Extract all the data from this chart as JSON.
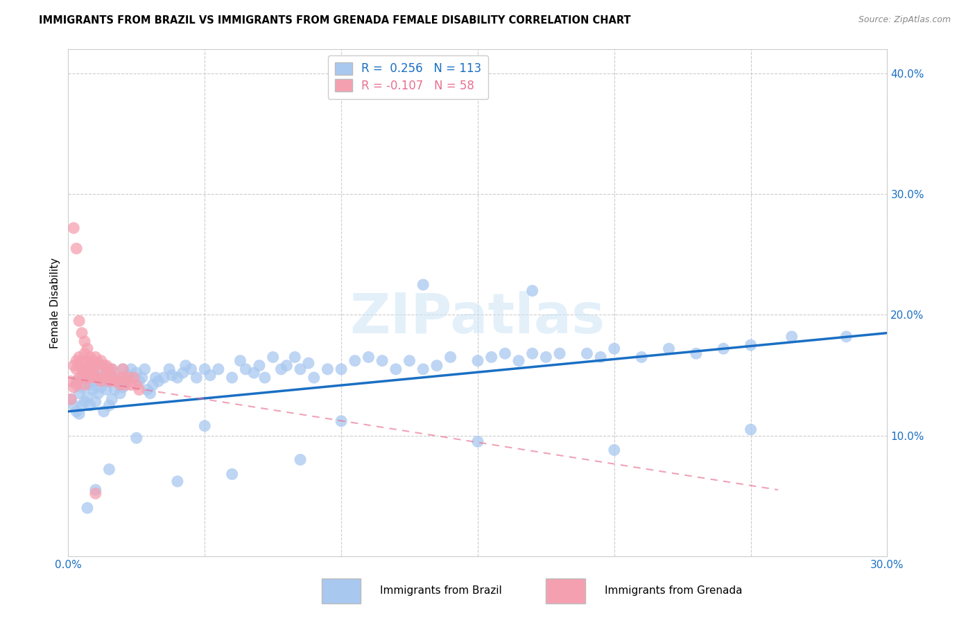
{
  "title": "IMMIGRANTS FROM BRAZIL VS IMMIGRANTS FROM GRENADA FEMALE DISABILITY CORRELATION CHART",
  "source": "Source: ZipAtlas.com",
  "ylabel": "Female Disability",
  "watermark": "ZIPatlas",
  "xlim": [
    0.0,
    0.3
  ],
  "ylim": [
    0.0,
    0.42
  ],
  "brazil_color": "#a8c8f0",
  "grenada_color": "#f5a0b0",
  "brazil_line_color": "#1a6fc4",
  "grenada_line_color": "#e87090",
  "brazil_R": 0.256,
  "brazil_N": 113,
  "grenada_R": -0.107,
  "grenada_N": 58,
  "brazil_scatter_x": [
    0.001,
    0.002,
    0.003,
    0.003,
    0.004,
    0.004,
    0.005,
    0.005,
    0.006,
    0.006,
    0.007,
    0.007,
    0.008,
    0.008,
    0.009,
    0.009,
    0.01,
    0.01,
    0.011,
    0.011,
    0.012,
    0.012,
    0.013,
    0.013,
    0.014,
    0.014,
    0.015,
    0.015,
    0.016,
    0.016,
    0.017,
    0.017,
    0.018,
    0.019,
    0.02,
    0.02,
    0.021,
    0.022,
    0.023,
    0.024,
    0.025,
    0.026,
    0.027,
    0.028,
    0.029,
    0.03,
    0.031,
    0.032,
    0.033,
    0.035,
    0.037,
    0.038,
    0.04,
    0.042,
    0.043,
    0.045,
    0.047,
    0.05,
    0.052,
    0.055,
    0.06,
    0.063,
    0.065,
    0.068,
    0.07,
    0.072,
    0.075,
    0.078,
    0.08,
    0.083,
    0.085,
    0.088,
    0.09,
    0.095,
    0.1,
    0.105,
    0.11,
    0.115,
    0.12,
    0.125,
    0.13,
    0.135,
    0.14,
    0.15,
    0.155,
    0.16,
    0.165,
    0.17,
    0.175,
    0.18,
    0.19,
    0.195,
    0.2,
    0.21,
    0.22,
    0.23,
    0.24,
    0.25,
    0.265,
    0.285,
    0.05,
    0.1,
    0.15,
    0.2,
    0.25,
    0.17,
    0.13,
    0.085,
    0.06,
    0.04,
    0.025,
    0.015,
    0.01,
    0.007
  ],
  "brazil_scatter_y": [
    0.13,
    0.125,
    0.12,
    0.145,
    0.118,
    0.135,
    0.14,
    0.125,
    0.15,
    0.128,
    0.132,
    0.155,
    0.142,
    0.125,
    0.138,
    0.145,
    0.128,
    0.15,
    0.135,
    0.16,
    0.14,
    0.145,
    0.15,
    0.12,
    0.138,
    0.155,
    0.125,
    0.145,
    0.13,
    0.155,
    0.148,
    0.138,
    0.145,
    0.135,
    0.14,
    0.155,
    0.145,
    0.15,
    0.155,
    0.148,
    0.152,
    0.145,
    0.148,
    0.155,
    0.138,
    0.135,
    0.142,
    0.148,
    0.145,
    0.148,
    0.155,
    0.15,
    0.148,
    0.152,
    0.158,
    0.155,
    0.148,
    0.155,
    0.15,
    0.155,
    0.148,
    0.162,
    0.155,
    0.152,
    0.158,
    0.148,
    0.165,
    0.155,
    0.158,
    0.165,
    0.155,
    0.16,
    0.148,
    0.155,
    0.155,
    0.162,
    0.165,
    0.162,
    0.155,
    0.162,
    0.155,
    0.158,
    0.165,
    0.162,
    0.165,
    0.168,
    0.162,
    0.168,
    0.165,
    0.168,
    0.168,
    0.165,
    0.172,
    0.165,
    0.172,
    0.168,
    0.172,
    0.175,
    0.182,
    0.182,
    0.108,
    0.112,
    0.095,
    0.088,
    0.105,
    0.22,
    0.225,
    0.08,
    0.068,
    0.062,
    0.098,
    0.072,
    0.055,
    0.04
  ],
  "grenada_scatter_x": [
    0.001,
    0.001,
    0.002,
    0.002,
    0.003,
    0.003,
    0.003,
    0.004,
    0.004,
    0.004,
    0.005,
    0.005,
    0.005,
    0.006,
    0.006,
    0.006,
    0.007,
    0.007,
    0.007,
    0.008,
    0.008,
    0.008,
    0.009,
    0.009,
    0.01,
    0.01,
    0.01,
    0.011,
    0.011,
    0.012,
    0.012,
    0.013,
    0.013,
    0.014,
    0.014,
    0.015,
    0.015,
    0.016,
    0.016,
    0.017,
    0.018,
    0.019,
    0.02,
    0.02,
    0.021,
    0.022,
    0.023,
    0.024,
    0.025,
    0.026,
    0.002,
    0.003,
    0.004,
    0.005,
    0.006,
    0.007,
    0.008,
    0.01
  ],
  "grenada_scatter_y": [
    0.13,
    0.145,
    0.14,
    0.158,
    0.155,
    0.142,
    0.162,
    0.148,
    0.158,
    0.165,
    0.155,
    0.148,
    0.162,
    0.142,
    0.155,
    0.168,
    0.148,
    0.162,
    0.155,
    0.155,
    0.148,
    0.158,
    0.152,
    0.162,
    0.148,
    0.158,
    0.165,
    0.148,
    0.158,
    0.145,
    0.162,
    0.148,
    0.158,
    0.152,
    0.158,
    0.145,
    0.155,
    0.148,
    0.155,
    0.145,
    0.148,
    0.142,
    0.148,
    0.155,
    0.142,
    0.148,
    0.142,
    0.148,
    0.142,
    0.138,
    0.272,
    0.255,
    0.195,
    0.185,
    0.178,
    0.172,
    0.165,
    0.052
  ],
  "brazil_trend_x_start": 0.0,
  "brazil_trend_x_end": 0.3,
  "brazil_trend_y_start": 0.12,
  "brazil_trend_y_end": 0.185,
  "grenada_trend_x_start": 0.0,
  "grenada_trend_x_end": 0.26,
  "grenada_trend_y_start": 0.148,
  "grenada_trend_y_end": 0.055
}
